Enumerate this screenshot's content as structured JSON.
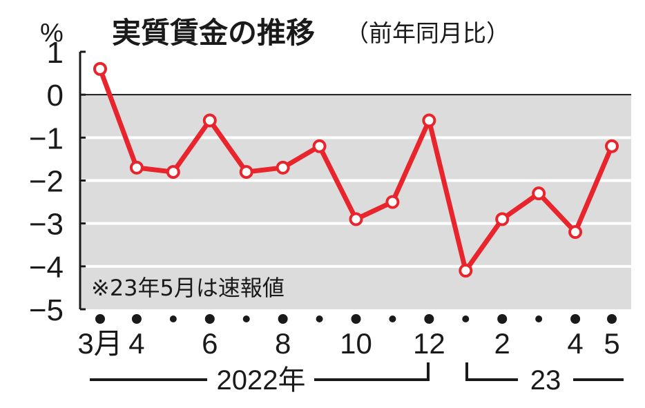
{
  "chart_data": {
    "type": "line",
    "title": "実質賃金の推移",
    "subtitle": "（前年同月比）",
    "unit": "%",
    "note": "※23年5月は速報値",
    "ylim": [
      -5,
      1
    ],
    "yticks": [
      "1",
      "0",
      "−1",
      "−2",
      "−3",
      "−4",
      "−5"
    ],
    "x": [
      "2022-03",
      "2022-04",
      "2022-05",
      "2022-06",
      "2022-07",
      "2022-08",
      "2022-09",
      "2022-10",
      "2022-11",
      "2022-12",
      "2023-01",
      "2023-02",
      "2023-03",
      "2023-04",
      "2023-05"
    ],
    "x_tick_labels": [
      "3月",
      "4",
      "",
      "6",
      "",
      "8",
      "",
      "10",
      "",
      "12",
      "",
      "2",
      "",
      "4",
      "5"
    ],
    "year_labels": [
      "2022年",
      "23"
    ],
    "series": [
      {
        "values": [
          0.6,
          -1.7,
          -1.8,
          -0.6,
          -1.8,
          -1.7,
          -1.2,
          -2.9,
          -2.5,
          -0.6,
          -4.1,
          -2.9,
          -2.3,
          -3.2,
          -1.2
        ]
      }
    ],
    "line_color": "#e8252d",
    "background_color": "#dcdcdc",
    "grid": true
  }
}
